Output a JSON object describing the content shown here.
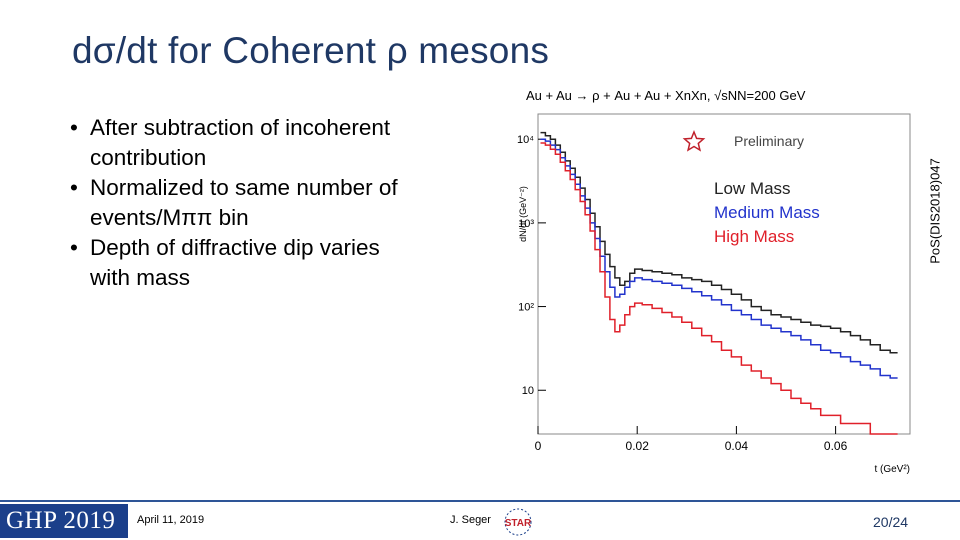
{
  "slide": {
    "title": "dσ/dt for Coherent ρ mesons",
    "bullets": [
      {
        "line1": "After subtraction of incoherent",
        "line2": "contribution"
      },
      {
        "line1": "Normalized to same number of",
        "line2": "events/Mππ bin"
      },
      {
        "line1": "Depth of diffractive dip varies",
        "line2": "with mass"
      }
    ],
    "side_label": "PoS(DIS2018)047"
  },
  "footer": {
    "logo_text": "GHP 2019",
    "date": "April 11, 2019",
    "author": "J. Seger",
    "star_logo_text": "STAR",
    "page": "20/24"
  },
  "chart_data": {
    "type": "line",
    "title": "Au + Au → ρ + Au + Au + XnXn, √sNN=200 GeV",
    "xlabel": "t (GeV²)",
    "ylabel": "dN/dt (GeV⁻²)",
    "xlim": [
      0,
      0.075
    ],
    "ylog": true,
    "ylim": [
      3,
      20000
    ],
    "x_ticks": [
      "0",
      "0.02",
      "0.04",
      "0.06"
    ],
    "x_tick_values": [
      0,
      0.02,
      0.04,
      0.06
    ],
    "y_ticks": [
      "10",
      "10²",
      "10³",
      "10⁴"
    ],
    "y_tick_values": [
      10,
      100,
      1000,
      10000
    ],
    "grid": false,
    "legend": {
      "placement": "top-right",
      "entries": [
        "Low Mass",
        "Medium Mass",
        "High Mass"
      ]
    },
    "annotation": "Preliminary",
    "series": [
      {
        "name": "Low Mass",
        "color": "#222222",
        "x": [
          0.001,
          0.002,
          0.003,
          0.004,
          0.005,
          0.006,
          0.007,
          0.008,
          0.009,
          0.01,
          0.011,
          0.012,
          0.013,
          0.014,
          0.015,
          0.016,
          0.017,
          0.018,
          0.019,
          0.02,
          0.022,
          0.024,
          0.026,
          0.028,
          0.03,
          0.032,
          0.034,
          0.036,
          0.038,
          0.04,
          0.042,
          0.044,
          0.046,
          0.048,
          0.05,
          0.052,
          0.054,
          0.056,
          0.058,
          0.06,
          0.062,
          0.064,
          0.066,
          0.068,
          0.07,
          0.072
        ],
        "y": [
          12000,
          11000,
          10000,
          8500,
          7000,
          5500,
          4500,
          3500,
          2600,
          1900,
          1300,
          900,
          600,
          420,
          300,
          220,
          180,
          200,
          250,
          280,
          270,
          260,
          250,
          240,
          220,
          210,
          200,
          180,
          160,
          140,
          120,
          100,
          90,
          80,
          75,
          70,
          65,
          60,
          58,
          55,
          50,
          45,
          40,
          35,
          30,
          28
        ]
      },
      {
        "name": "Medium Mass",
        "color": "#2233cc",
        "x": [
          0.001,
          0.002,
          0.003,
          0.004,
          0.005,
          0.006,
          0.007,
          0.008,
          0.009,
          0.01,
          0.011,
          0.012,
          0.013,
          0.014,
          0.015,
          0.016,
          0.017,
          0.018,
          0.019,
          0.02,
          0.022,
          0.024,
          0.026,
          0.028,
          0.03,
          0.032,
          0.034,
          0.036,
          0.038,
          0.04,
          0.042,
          0.044,
          0.046,
          0.048,
          0.05,
          0.052,
          0.054,
          0.056,
          0.058,
          0.06,
          0.062,
          0.064,
          0.066,
          0.068,
          0.07,
          0.072
        ],
        "y": [
          10000,
          9500,
          8500,
          7500,
          6000,
          4800,
          3800,
          2900,
          2100,
          1500,
          1000,
          650,
          400,
          260,
          170,
          130,
          140,
          170,
          200,
          220,
          210,
          200,
          190,
          180,
          165,
          150,
          135,
          120,
          105,
          90,
          80,
          70,
          60,
          55,
          50,
          45,
          40,
          35,
          30,
          28,
          25,
          22,
          20,
          18,
          15,
          14
        ]
      },
      {
        "name": "High Mass",
        "color": "#e0202a",
        "x": [
          0.001,
          0.002,
          0.003,
          0.004,
          0.005,
          0.006,
          0.007,
          0.008,
          0.009,
          0.01,
          0.011,
          0.012,
          0.013,
          0.014,
          0.015,
          0.016,
          0.017,
          0.018,
          0.019,
          0.02,
          0.022,
          0.024,
          0.026,
          0.028,
          0.03,
          0.032,
          0.034,
          0.036,
          0.038,
          0.04,
          0.042,
          0.044,
          0.046,
          0.048,
          0.05,
          0.052,
          0.054,
          0.056,
          0.058,
          0.06,
          0.062,
          0.064,
          0.066,
          0.068,
          0.07,
          0.072
        ],
        "y": [
          9000,
          8500,
          7600,
          6600,
          5300,
          4200,
          3300,
          2500,
          1800,
          1250,
          800,
          480,
          260,
          130,
          70,
          50,
          60,
          80,
          100,
          110,
          105,
          95,
          85,
          75,
          65,
          55,
          45,
          38,
          30,
          25,
          20,
          17,
          14,
          12,
          10,
          8,
          7,
          6,
          5,
          5,
          4,
          4,
          4,
          3,
          3,
          3
        ]
      }
    ]
  }
}
